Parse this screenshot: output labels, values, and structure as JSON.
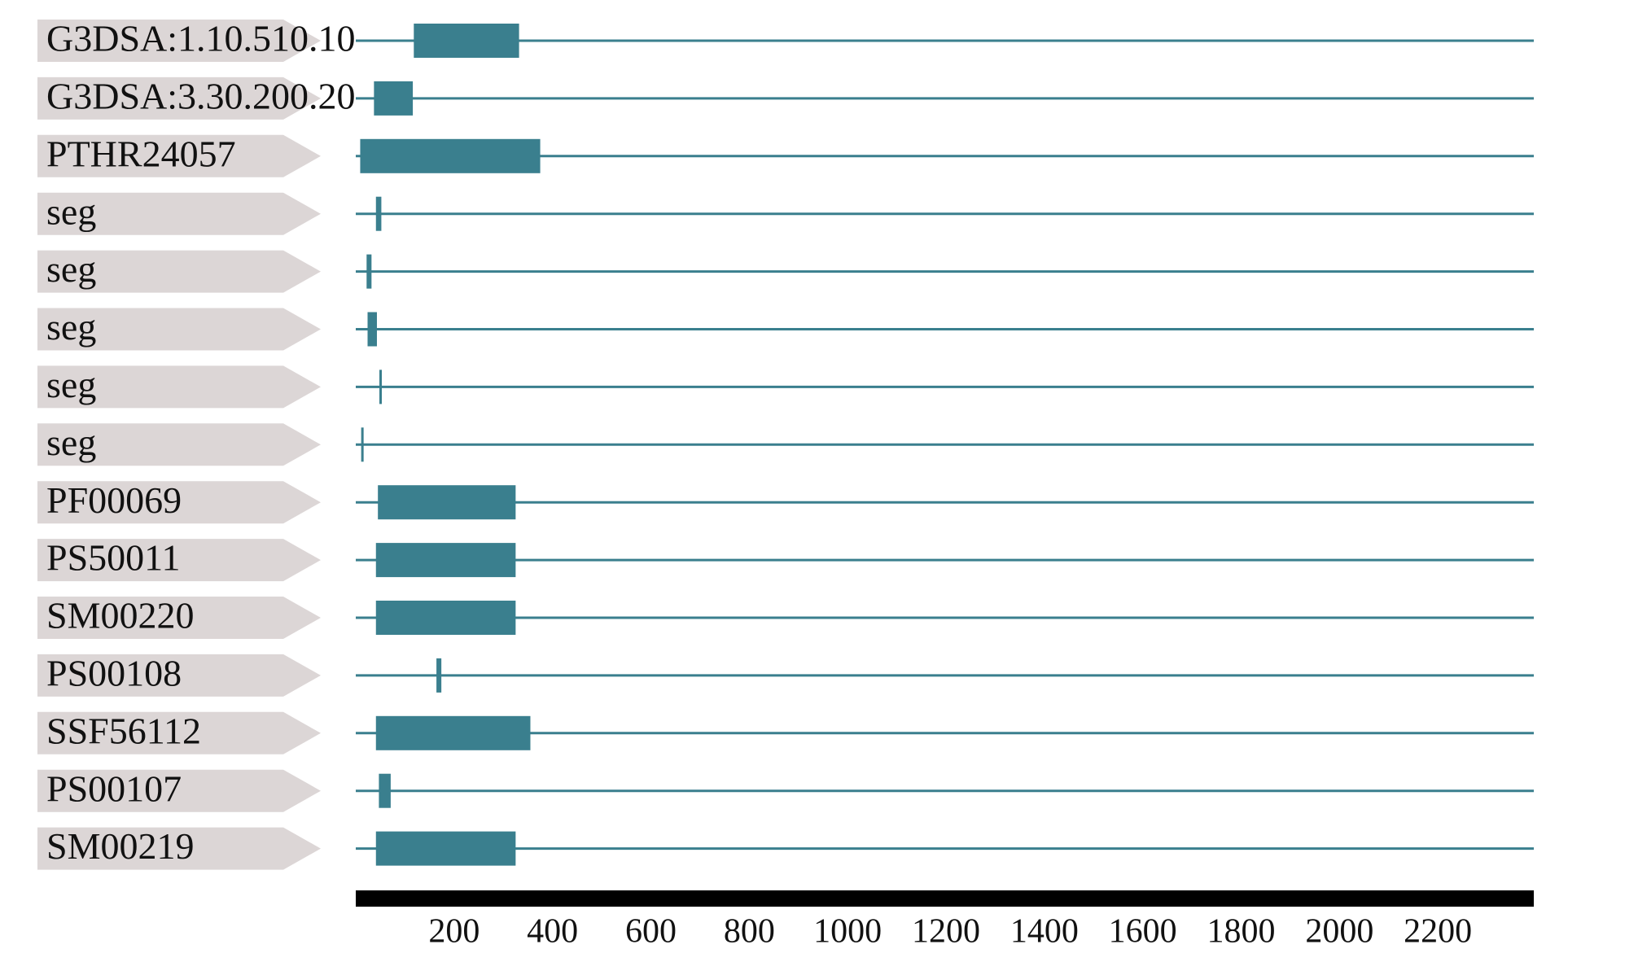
{
  "chart_data": {
    "type": "domains",
    "color": "#3a7f8e",
    "label_color": "#dcd6d6",
    "xlim": [
      0,
      2395
    ],
    "xticks": [
      200,
      400,
      600,
      800,
      1000,
      1200,
      1400,
      1600,
      1800,
      2000,
      2200
    ],
    "tracks": [
      {
        "name": "G3DSA:1.10.510.10",
        "start": 118,
        "end": 332
      },
      {
        "name": "G3DSA:3.30.200.20",
        "start": 37,
        "end": 116
      },
      {
        "name": "PTHR24057",
        "start": 9,
        "end": 375
      },
      {
        "name": "seg",
        "start": 41,
        "end": 52
      },
      {
        "name": "seg",
        "start": 22,
        "end": 32
      },
      {
        "name": "seg",
        "start": 24,
        "end": 43
      },
      {
        "name": "seg",
        "start": 48,
        "end": 52
      },
      {
        "name": "seg",
        "start": 11,
        "end": 15
      },
      {
        "name": "PF00069",
        "start": 45,
        "end": 325
      },
      {
        "name": "PS50011",
        "start": 41,
        "end": 325
      },
      {
        "name": "SM00220",
        "start": 41,
        "end": 325
      },
      {
        "name": "PS00108",
        "start": 164,
        "end": 174
      },
      {
        "name": "SSF56112",
        "start": 41,
        "end": 355
      },
      {
        "name": "PS00107",
        "start": 47,
        "end": 71
      },
      {
        "name": "SM00219",
        "start": 41,
        "end": 325
      }
    ]
  }
}
